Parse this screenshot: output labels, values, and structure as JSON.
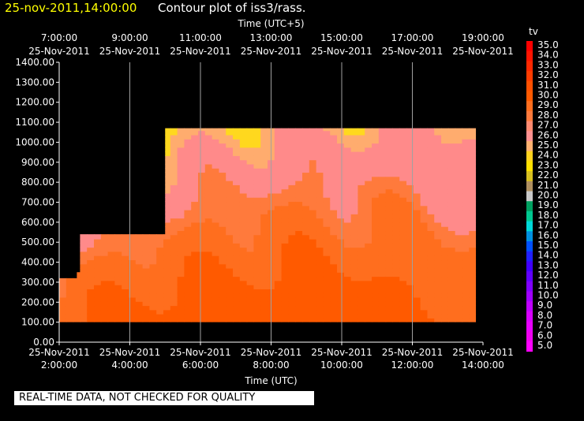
{
  "header": {
    "date_time": "25-nov-2011,14:00:00",
    "title": "Contour plot of iss3/rass."
  },
  "footer": {
    "quality_note": "REAL-TIME DATA, NOT CHECKED FOR QUALITY"
  },
  "chart_data": {
    "type": "heatmap",
    "title": "Contour plot of iss3/rass.",
    "top_axis": {
      "label": "Time (UTC+5)",
      "ticks": [
        [
          "7:00:00",
          "25-Nov-2011"
        ],
        [
          "9:00:00",
          "25-Nov-2011"
        ],
        [
          "11:00:00",
          "25-Nov-2011"
        ],
        [
          "13:00:00",
          "25-Nov-2011"
        ],
        [
          "15:00:00",
          "25-Nov-2011"
        ],
        [
          "17:00:00",
          "25-Nov-2011"
        ],
        [
          "19:00:00",
          "25-Nov-2011"
        ]
      ]
    },
    "xlabel": "Time (UTC)",
    "x_ticks": [
      [
        "25-Nov-2011",
        "2:00:00"
      ],
      [
        "25-Nov-2011",
        "4:00:00"
      ],
      [
        "25-Nov-2011",
        "6:00:00"
      ],
      [
        "25-Nov-2011",
        "8:00:00"
      ],
      [
        "25-Nov-2011",
        "10:00:00"
      ],
      [
        "25-Nov-2011",
        "12:00:00"
      ],
      [
        "25-Nov-2011",
        "14:00:00"
      ]
    ],
    "xlim_hours": [
      2,
      14
    ],
    "ylim": [
      0,
      1400
    ],
    "y_ticks": [
      "0.00",
      "100.00",
      "200.00",
      "300.00",
      "400.00",
      "500.00",
      "600.00",
      "700.00",
      "800.00",
      "900.00",
      "1000.00",
      "1100.00",
      "1200.00",
      "1300.00",
      "1400.00"
    ],
    "colorbar": {
      "label": "tv",
      "ticks": [
        "35.0",
        "34.0",
        "33.0",
        "32.0",
        "31.0",
        "30.0",
        "29.0",
        "28.0",
        "27.0",
        "26.0",
        "25.0",
        "24.0",
        "23.0",
        "22.0",
        "21.0",
        "20.0",
        "19.0",
        "18.0",
        "17.0",
        "16.0",
        "15.0",
        "14.0",
        "13.0",
        "12.0",
        "11.0",
        "10.0",
        "9.0",
        "8.0",
        "7.0",
        "6.0",
        "5.0"
      ],
      "colors": [
        "#ff0000",
        "#ff1400",
        "#ff2800",
        "#ff3c00",
        "#ff5000",
        "#ff5a00",
        "#ff6e1e",
        "#ff7a3c",
        "#ff8a70",
        "#ff9090",
        "#ffb070",
        "#ffd21e",
        "#ffe000",
        "#d8c020",
        "#b09060",
        "#c8c8c8",
        "#00a060",
        "#00c890",
        "#00d8d8",
        "#0090e0",
        "#0050ff",
        "#2020ff",
        "#4000ff",
        "#6000ff",
        "#8000ff",
        "#a000ff",
        "#c000ff",
        "#d800ff",
        "#e800ff",
        "#f000f0",
        "#ff00ff"
      ]
    },
    "grid": true,
    "data_region": {
      "x_start_hours": 2.0,
      "x_end_hours": 13.8,
      "y_bottom": 100,
      "y_top_steps": [
        [
          2.0,
          320
        ],
        [
          2.5,
          540
        ],
        [
          5.0,
          1070
        ],
        [
          13.8,
          1070
        ]
      ]
    },
    "band_values": [
      {
        "min_tv": 31,
        "color": "#ff5a00"
      },
      {
        "min_tv": 29,
        "color": "#ff6e1e"
      },
      {
        "min_tv": 28,
        "color": "#ff7a3c"
      },
      {
        "min_tv": 26,
        "color": "#ff8a8a"
      },
      {
        "min_tv": 25,
        "color": "#ffac6e"
      },
      {
        "min_tv": 23,
        "color": "#ffd81e"
      }
    ]
  }
}
